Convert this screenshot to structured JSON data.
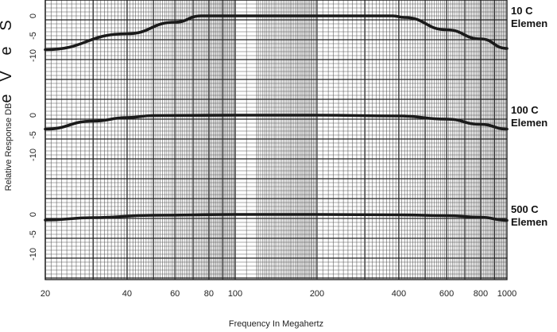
{
  "chart_data": {
    "type": "line",
    "x_scale": "log",
    "xlim": [
      20,
      1000
    ],
    "x_ticks": [
      "20",
      "40",
      "60",
      "80",
      "100",
      "200",
      "400",
      "600",
      "800",
      "1000"
    ],
    "xlabel": "Frequency In Megahertz",
    "ylabel": "Relative Response DB",
    "grid": true,
    "left_edge_glyphs": [
      "S",
      "e",
      "V",
      "e"
    ],
    "panels": [
      {
        "label_lines": [
          "10 C",
          "Elemen"
        ],
        "ylim": [
          -12,
          3
        ],
        "y_ticks": [
          "0",
          "-5",
          "-10"
        ],
        "series": [
          {
            "x": [
              20,
              40,
              60,
              75,
              100,
              200,
              380,
              420,
              600,
              800,
              1000
            ],
            "y": [
              -8.5,
              -4.5,
              -1.6,
              0,
              0,
              0,
              0,
              -0.4,
              -3.5,
              -5.8,
              -8.2
            ]
          }
        ]
      },
      {
        "label_lines": [
          "100 C",
          "Elemen"
        ],
        "ylim": [
          -12,
          3
        ],
        "y_ticks": [
          "0",
          "-5",
          "-10"
        ],
        "series": [
          {
            "x": [
              20,
              30,
              40,
              50,
              100,
              200,
              400,
              600,
              800,
              1000
            ],
            "y": [
              -3.5,
              -1.5,
              -0.6,
              -0.1,
              0,
              0,
              -0.2,
              -1.0,
              -2.3,
              -3.5
            ]
          }
        ]
      },
      {
        "label_lines": [
          "500 C",
          "Elemen"
        ],
        "ylim": [
          -12,
          3
        ],
        "y_ticks": [
          "0",
          "-5",
          "-10"
        ],
        "series": [
          {
            "x": [
              20,
              30,
              50,
              100,
              200,
              400,
              600,
              800,
              1000
            ],
            "y": [
              -1.4,
              -0.8,
              -0.2,
              0,
              0,
              -0.1,
              -0.3,
              -0.7,
              -1.5
            ]
          }
        ]
      }
    ],
    "colors": {
      "grid_major": "#222222",
      "grid_minor": "#555555",
      "line": "#1a1a1a"
    }
  }
}
